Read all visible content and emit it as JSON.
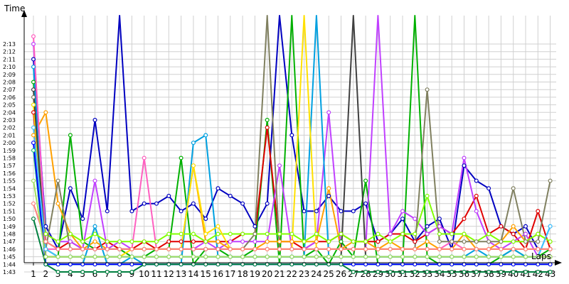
{
  "chart_data": {
    "type": "line",
    "xlabel": "Laps",
    "ylabel": "Time",
    "x_ticks": [
      "1",
      "2",
      "3",
      "4",
      "5",
      "6",
      "7",
      "8",
      "9",
      "10",
      "11",
      "12",
      "13",
      "14",
      "15",
      "16",
      "17",
      "18",
      "19",
      "20",
      "21",
      "22",
      "23",
      "24",
      "25",
      "26",
      "27",
      "28",
      "29",
      "30",
      "31",
      "32",
      "33",
      "34",
      "35",
      "36",
      "37",
      "38",
      "39",
      "40",
      "41",
      "42",
      "43"
    ],
    "y_ticks": [
      "1:43",
      "1:44",
      "1:45",
      "1:46",
      "1:47",
      "1:48",
      "1:49",
      "1:50",
      "1:51",
      "1:52",
      "1:53",
      "1:54",
      "1:55",
      "1:56",
      "1:57",
      "1:58",
      "1:59",
      "2:00",
      "2:01",
      "2:02",
      "2:03",
      "2:04",
      "2:05",
      "2:06",
      "2:07",
      "2:08",
      "2:09",
      "2:10",
      "2:11",
      "2:12",
      "2:13"
    ],
    "xlim": [
      1,
      43
    ],
    "ylim_seconds": [
      102.2,
      138.0
    ],
    "grid": true,
    "legend": "none",
    "series": [
      {
        "color": "#0000c0",
        "values": [
          131,
          109,
          106,
          114,
          110,
          123,
          111,
          140,
          111,
          112,
          112,
          113,
          111,
          112,
          110,
          114,
          113,
          112,
          109,
          112,
          140,
          121,
          111,
          111,
          113,
          111,
          111,
          112,
          107,
          108,
          110,
          107,
          109,
          110,
          106,
          117,
          115,
          114,
          109,
          108,
          109,
          106,
          106
        ]
      },
      {
        "color": "#00b000",
        "values": [
          128,
          106,
          105,
          121,
          107,
          106,
          106,
          106,
          105,
          105,
          106,
          106,
          118,
          104,
          106,
          106,
          105,
          105,
          106,
          123,
          104,
          140,
          105,
          106,
          104,
          107,
          105,
          115,
          104,
          104,
          104,
          140,
          105,
          104,
          104,
          104,
          104,
          104,
          105,
          106,
          105,
          105,
          106
        ]
      },
      {
        "color": "#e00000",
        "values": [
          124,
          107,
          106,
          107,
          106,
          106,
          107,
          106,
          106,
          107,
          106,
          107,
          107,
          107,
          107,
          107,
          107,
          108,
          108,
          122,
          107,
          107,
          106,
          107,
          107,
          108,
          107,
          107,
          107,
          108,
          108,
          107,
          108,
          109,
          108,
          110,
          113,
          108,
          109,
          108,
          106,
          111,
          106
        ]
      },
      {
        "color": "#c040ff",
        "values": [
          133,
          108,
          107,
          107,
          106,
          115,
          106,
          107,
          106,
          106,
          106,
          106,
          106,
          106,
          107,
          106,
          107,
          107,
          107,
          107,
          117,
          106,
          106,
          107,
          124,
          106,
          106,
          106,
          140,
          108,
          111,
          110,
          108,
          109,
          108,
          118,
          111,
          107,
          106,
          107,
          108,
          105,
          105
        ]
      },
      {
        "color": "#ffa000",
        "values": [
          121,
          124,
          112,
          108,
          106,
          107,
          106,
          106,
          106,
          106,
          106,
          106,
          106,
          117,
          107,
          107,
          106,
          106,
          106,
          107,
          107,
          107,
          107,
          107,
          114,
          106,
          107,
          107,
          106,
          107,
          106,
          106,
          107,
          106,
          106,
          108,
          106,
          106,
          107,
          109,
          107,
          108,
          107
        ]
      },
      {
        "color": "#00a0e0",
        "values": [
          130,
          104,
          104,
          104,
          104,
          109,
          104,
          104,
          105,
          104,
          104,
          104,
          104,
          120,
          121,
          105,
          105,
          105,
          105,
          105,
          105,
          105,
          105,
          140,
          105,
          105,
          105,
          105,
          105,
          105,
          105,
          105,
          105,
          105,
          105,
          105,
          106,
          105,
          105,
          106,
          105,
          105,
          109
        ]
      },
      {
        "color": "#80ff00",
        "values": [
          125,
          108,
          107,
          108,
          107,
          108,
          107,
          107,
          107,
          107,
          107,
          108,
          108,
          108,
          107,
          108,
          108,
          108,
          108,
          108,
          108,
          108,
          107,
          108,
          107,
          108,
          107,
          107,
          108,
          107,
          108,
          108,
          113,
          108,
          108,
          108,
          107,
          108,
          107,
          107,
          107,
          108,
          107
        ]
      },
      {
        "color": "#ff60c0",
        "values": [
          134,
          106,
          106,
          106,
          106,
          106,
          106,
          106,
          106,
          118,
          106,
          106,
          106,
          106,
          106,
          106,
          106,
          106,
          106,
          106,
          106,
          106,
          106,
          106,
          106,
          106,
          106,
          106,
          106,
          106,
          106,
          106,
          106,
          106,
          107,
          106,
          106,
          106,
          106,
          106,
          106,
          106,
          106
        ]
      },
      {
        "color": "#808060",
        "values": [
          126,
          106,
          115,
          106,
          106,
          106,
          106,
          106,
          106,
          106,
          106,
          106,
          106,
          106,
          106,
          106,
          106,
          106,
          108,
          140,
          106,
          106,
          106,
          106,
          106,
          106,
          106,
          106,
          106,
          106,
          106,
          106,
          127,
          107,
          107,
          107,
          107,
          107,
          107,
          114,
          107,
          107,
          115
        ]
      },
      {
        "color": "#ffe000",
        "values": [
          125,
          105,
          105,
          105,
          105,
          105,
          105,
          105,
          106,
          106,
          106,
          106,
          106,
          117,
          108,
          109,
          106,
          106,
          106,
          106,
          106,
          106,
          140,
          106,
          106,
          106,
          106,
          106,
          106,
          106,
          106,
          106,
          106,
          106,
          106,
          106,
          106,
          106,
          106,
          106,
          106,
          106,
          106
        ]
      },
      {
        "color": "#404040",
        "values": [
          127,
          105,
          105,
          105,
          105,
          105,
          105,
          105,
          105,
          105,
          105,
          105,
          105,
          105,
          105,
          105,
          105,
          105,
          105,
          105,
          105,
          105,
          105,
          105,
          105,
          105,
          140,
          105,
          105,
          105,
          105,
          105,
          105,
          105,
          105,
          105,
          105,
          105,
          105,
          105,
          105,
          105,
          105
        ]
      },
      {
        "color": "#20c080",
        "values": [
          119,
          104,
          104,
          104,
          104,
          104,
          104,
          104,
          104,
          104,
          104,
          104,
          104,
          104,
          104,
          104,
          104,
          104,
          104,
          104,
          104,
          104,
          104,
          104,
          104,
          104,
          104,
          104,
          104,
          104,
          104,
          104,
          104,
          104,
          104,
          104,
          104,
          104,
          104,
          104,
          104,
          104,
          104
        ]
      },
      {
        "color": "#40c0ff",
        "values": [
          122,
          106,
          105,
          105,
          105,
          105,
          105,
          105,
          105,
          105,
          105,
          105,
          105,
          105,
          105,
          105,
          105,
          105,
          105,
          105,
          105,
          105,
          105,
          105,
          105,
          105,
          105,
          105,
          105,
          105,
          105,
          105,
          105,
          105,
          105,
          105,
          105,
          105,
          105,
          105,
          105,
          105,
          109
        ]
      },
      {
        "color": "#ff8080",
        "values": [
          112,
          107,
          106,
          106,
          106,
          106,
          106,
          106,
          106,
          106,
          106,
          106,
          106,
          106,
          106,
          106,
          106,
          106,
          106,
          106,
          106,
          106,
          106,
          106,
          106,
          106,
          106,
          106,
          106,
          106,
          106,
          106,
          106,
          106,
          106,
          106,
          106,
          106,
          106,
          106,
          106,
          106,
          106
        ]
      },
      {
        "color": "#0000ff",
        "values": [
          120,
          104,
          104,
          104,
          104,
          104,
          104,
          104,
          104,
          104,
          104,
          104,
          104,
          104,
          104,
          104,
          104,
          104,
          104,
          104,
          104,
          104,
          104,
          104,
          104,
          104,
          104,
          104,
          104,
          104,
          104,
          104,
          104,
          104,
          104,
          104,
          104,
          104,
          104,
          104,
          104,
          104,
          104
        ]
      },
      {
        "color": "#a0e060",
        "values": [
          115,
          105,
          105,
          105,
          105,
          105,
          105,
          105,
          105,
          105,
          105,
          105,
          105,
          105,
          105,
          105,
          105,
          105,
          105,
          105,
          105,
          105,
          105,
          105,
          105,
          105,
          105,
          105,
          105,
          105,
          105,
          105,
          105,
          105,
          105,
          105,
          105,
          105,
          105,
          105,
          105,
          105,
          105
        ]
      },
      {
        "color": "#008040",
        "values": [
          110,
          104,
          103,
          103,
          103,
          103,
          103,
          103,
          103,
          104,
          104,
          104,
          104,
          104,
          104,
          104,
          104,
          104,
          104,
          104,
          104,
          104,
          104,
          104,
          104,
          104,
          103,
          103,
          103,
          103,
          103,
          103,
          103,
          103,
          103,
          103,
          103,
          103,
          103,
          103,
          103,
          103,
          103
        ]
      }
    ]
  }
}
